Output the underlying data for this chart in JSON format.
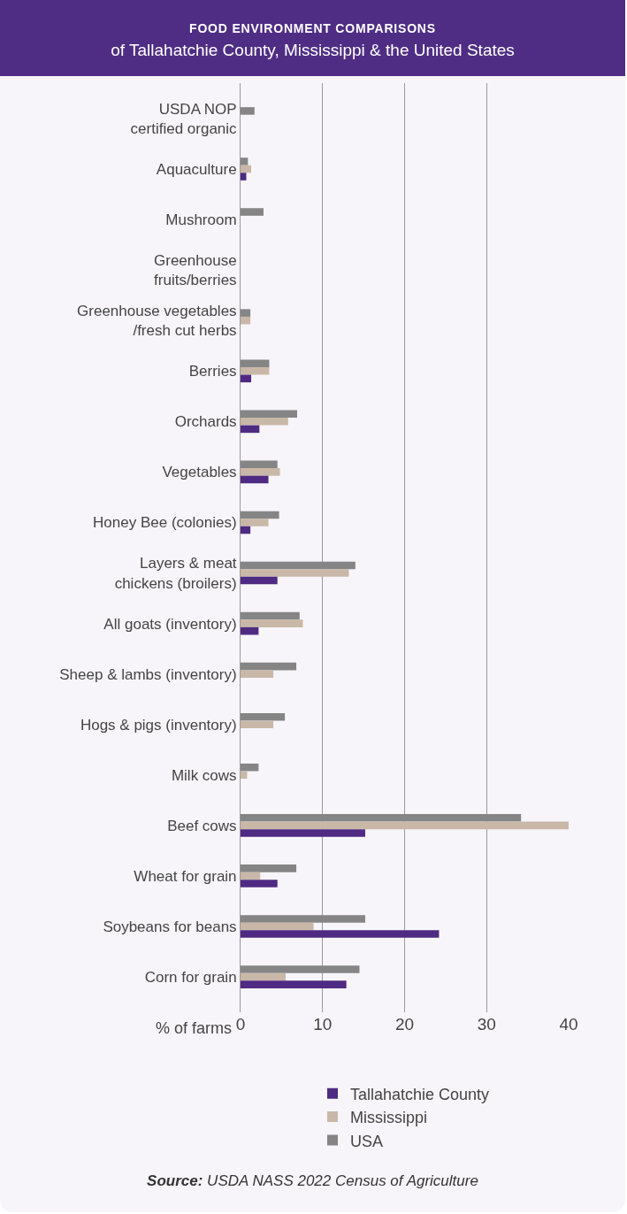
{
  "chart_data": {
    "type": "bar",
    "orientation": "horizontal",
    "title": "FOOD ENVIRONMENT COMPARISONS",
    "subtitle": "of Tallahatchie County, Mississippi & the United States",
    "xlabel": "% of farms",
    "categories": [
      "USDA NOP\ncertified organic",
      "Aquaculture",
      "Mushroom",
      "Greenhouse\nfruits/berries",
      "Greenhouse vegetables\n/fresh cut herbs",
      "Berries",
      "Orchards",
      "Vegetables",
      "Honey Bee (colonies)",
      "Layers & meat\nchickens (broilers)",
      "All goats (inventory)",
      "Sheep & lambs (inventory)",
      "Hogs & pigs (inventory)",
      "Milk cows",
      "Beef cows",
      "Wheat for grain",
      "Soybeans for beans",
      "Corn for grain"
    ],
    "series": [
      {
        "name": "Tallahatchie County",
        "color": "#4f2a82",
        "values": [
          0,
          0.7,
          0,
          0,
          0,
          1.3,
          2.3,
          3.4,
          1.2,
          4.5,
          2.2,
          0,
          0,
          0,
          15.2,
          4.5,
          24.2,
          12.9
        ]
      },
      {
        "name": "Mississippi",
        "color": "#c9b8a8",
        "values": [
          0,
          1.3,
          0,
          0,
          1.2,
          3.5,
          5.8,
          4.8,
          3.4,
          13.2,
          7.6,
          4.0,
          4.0,
          0.8,
          40,
          2.4,
          8.9,
          5.5
        ]
      },
      {
        "name": "USA",
        "color": "#858585",
        "values": [
          1.7,
          0.9,
          2.8,
          0,
          1.2,
          3.5,
          6.9,
          4.5,
          4.7,
          14.0,
          7.2,
          6.8,
          5.4,
          2.2,
          34.2,
          6.8,
          15.2,
          14.5
        ]
      }
    ],
    "xlim": [
      0,
      40
    ],
    "xticks": [
      0,
      10,
      20,
      30,
      40
    ],
    "grid": "x",
    "legend": "bottom",
    "annotations": [
      "Source: USDA NASS 2022 Census of Agriculture"
    ]
  }
}
